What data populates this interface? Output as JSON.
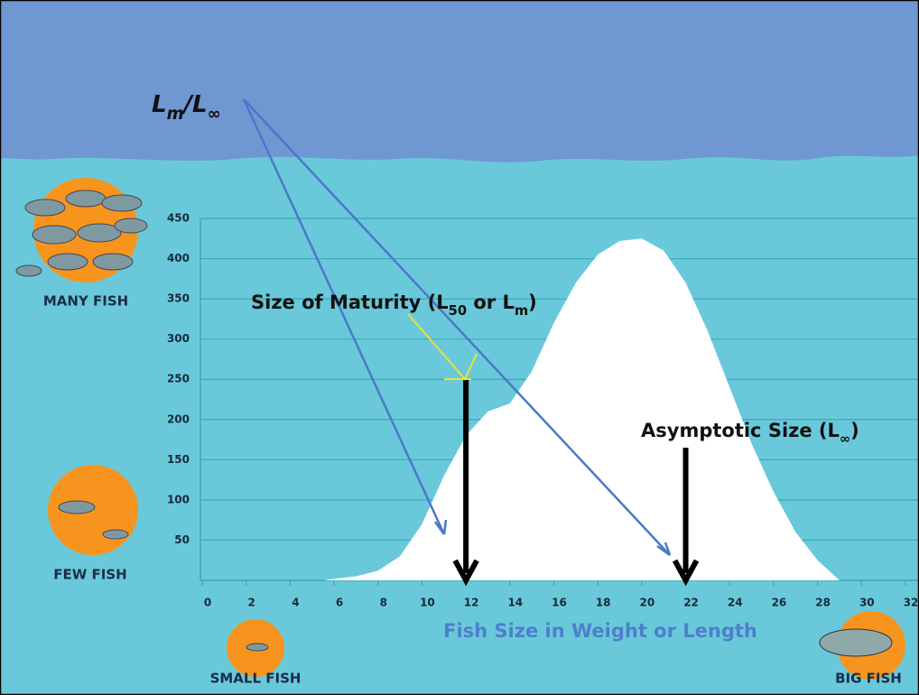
{
  "chart_data": {
    "type": "area",
    "x": [
      5.5,
      6,
      7,
      8,
      9,
      10,
      11,
      12,
      13,
      14,
      15,
      16,
      17,
      18,
      19,
      20,
      21,
      22,
      23,
      24,
      25,
      26,
      27,
      28,
      29
    ],
    "values": [
      0,
      2,
      5,
      12,
      30,
      70,
      130,
      180,
      210,
      220,
      260,
      320,
      370,
      405,
      422,
      425,
      410,
      370,
      310,
      240,
      170,
      110,
      60,
      25,
      0
    ],
    "color": "#ffffff",
    "xlim": [
      0,
      32
    ],
    "xticks": [
      0,
      2,
      4,
      6,
      8,
      10,
      12,
      14,
      16,
      18,
      20,
      22,
      24,
      26,
      28,
      30,
      32
    ],
    "ylim": [
      0,
      450
    ],
    "yticks": [
      50,
      100,
      150,
      200,
      250,
      300,
      350,
      400,
      450
    ],
    "grid": true,
    "x_label": "Fish Size in Weight or Length",
    "arrows": [
      {
        "x": 12,
        "y": 250
      },
      {
        "x": 22,
        "y": 165
      }
    ],
    "ratio_label": [
      "L",
      "m",
      "/L",
      "∞"
    ],
    "maturity_label": [
      "Size of Maturity (L",
      "50",
      " or L",
      "m",
      ")"
    ],
    "asymptotic_label": [
      "Asymptotic Size (L",
      "∞",
      ")"
    ],
    "many_fish": "MANY FISH",
    "few_fish": "FEW FISH",
    "small_fish": "SMALL FISH",
    "big_fish": "BIG FISH"
  }
}
